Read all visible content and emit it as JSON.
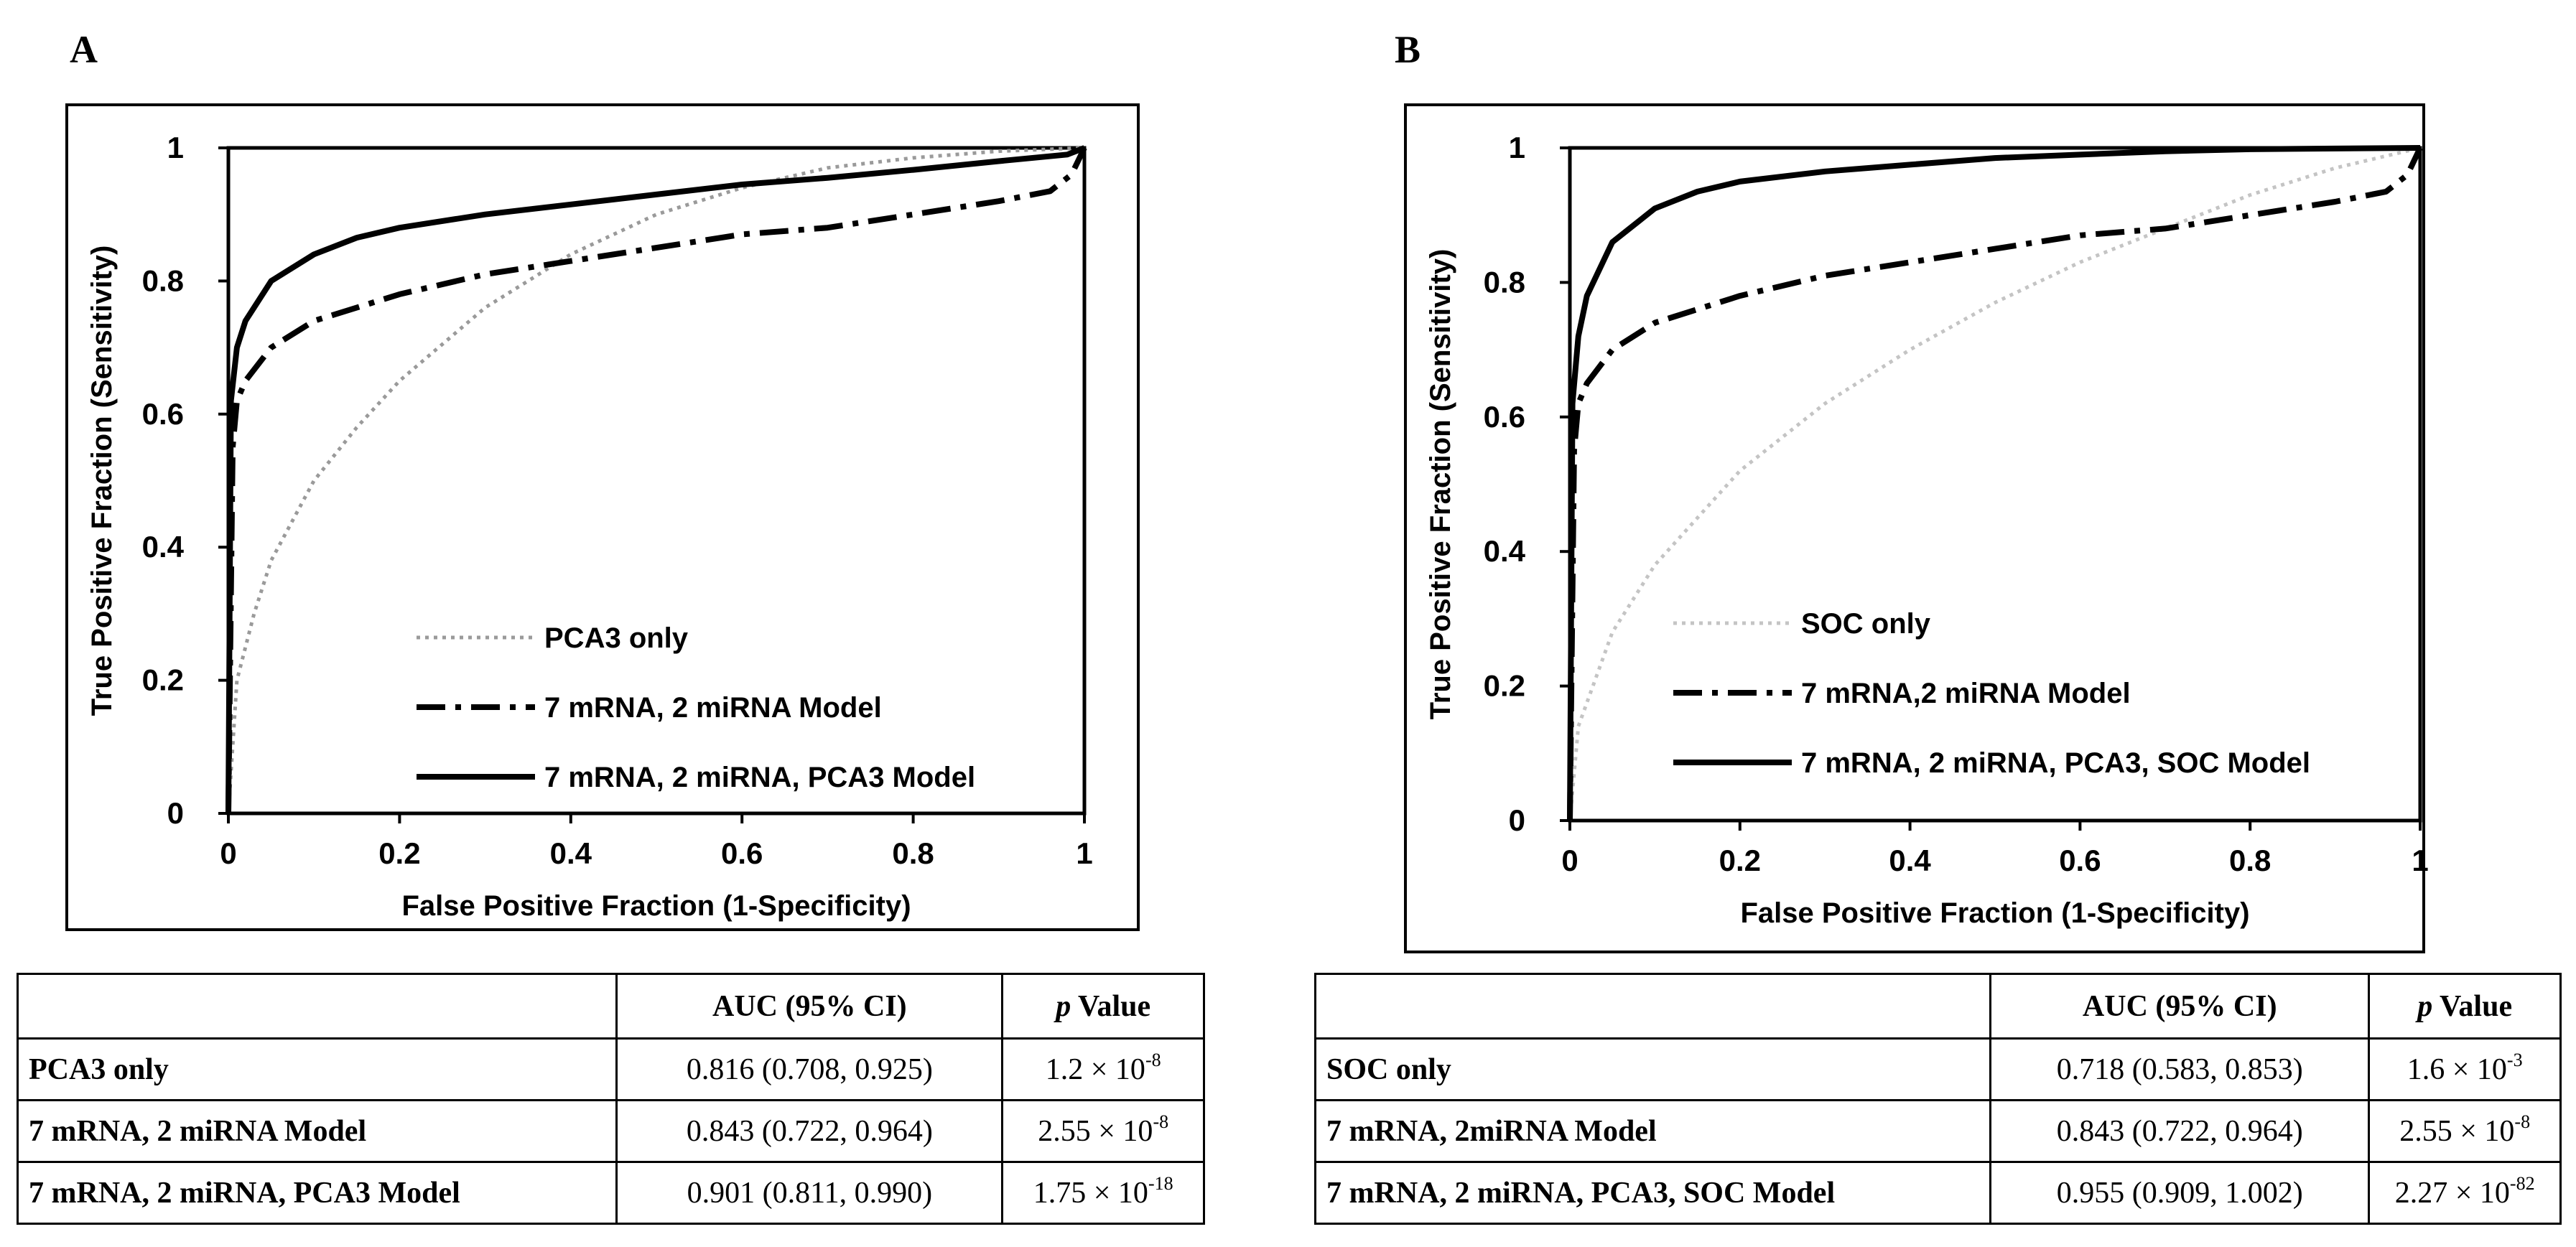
{
  "panels": [
    {
      "label": "A",
      "chart_data": {
        "type": "line",
        "title": "",
        "xlabel": "False Positive Fraction (1-Specificity)",
        "ylabel": "True Positive Fraction (Sensitivity)",
        "xlim": [
          0,
          1
        ],
        "ylim": [
          0,
          1
        ],
        "xticks": [
          "0",
          "0.2",
          "0.4",
          "0.6",
          "0.8",
          "1"
        ],
        "yticks": [
          "0",
          "0.2",
          "0.4",
          "0.6",
          "0.8",
          "1"
        ],
        "legend_position": "lower-middle",
        "series": [
          {
            "name": "PCA3 only",
            "style": "dotted",
            "color": "#9a9a9a",
            "x": [
              0,
              0.01,
              0.03,
              0.05,
              0.1,
              0.15,
              0.2,
              0.3,
              0.4,
              0.5,
              0.6,
              0.7,
              0.8,
              0.9,
              1.0
            ],
            "y": [
              0,
              0.2,
              0.3,
              0.38,
              0.5,
              0.58,
              0.65,
              0.76,
              0.84,
              0.9,
              0.94,
              0.97,
              0.985,
              0.995,
              1.0
            ]
          },
          {
            "name": "7 mRNA, 2 miRNA Model",
            "style": "dashdot",
            "color": "#000000",
            "x": [
              0,
              0.005,
              0.01,
              0.02,
              0.05,
              0.1,
              0.2,
              0.3,
              0.4,
              0.5,
              0.6,
              0.7,
              0.8,
              0.9,
              0.96,
              0.985,
              1.0
            ],
            "y": [
              0,
              0.55,
              0.62,
              0.65,
              0.7,
              0.74,
              0.78,
              0.81,
              0.83,
              0.85,
              0.87,
              0.88,
              0.9,
              0.92,
              0.935,
              0.96,
              1.0
            ]
          },
          {
            "name": "7 mRNA, 2 miRNA, PCA3 Model",
            "style": "solid",
            "color": "#000000",
            "x": [
              0,
              0.003,
              0.01,
              0.02,
              0.05,
              0.1,
              0.15,
              0.2,
              0.3,
              0.4,
              0.5,
              0.6,
              0.7,
              0.8,
              0.9,
              0.98,
              1.0
            ],
            "y": [
              0,
              0.62,
              0.7,
              0.74,
              0.8,
              0.84,
              0.865,
              0.88,
              0.9,
              0.915,
              0.93,
              0.945,
              0.955,
              0.967,
              0.98,
              0.99,
              1.0
            ]
          }
        ]
      },
      "table": {
        "headers": {
          "auc": "AUC (95% CI)",
          "p_italic": "p",
          "p_rest": "Value"
        },
        "rows": [
          {
            "name": "PCA3 only",
            "auc": "0.816 (0.708, 0.925)",
            "p_base": "1.2 × 10",
            "p_exp": "-8"
          },
          {
            "name": "7 mRNA, 2 miRNA Model",
            "auc": "0.843 (0.722, 0.964)",
            "p_base": "2.55 × 10",
            "p_exp": "-8"
          },
          {
            "name": "7 mRNA, 2 miRNA, PCA3 Model",
            "auc": "0.901 (0.811, 0.990)",
            "p_base": "1.75 × 10",
            "p_exp": "-18"
          }
        ]
      }
    },
    {
      "label": "B",
      "chart_data": {
        "type": "line",
        "title": "",
        "xlabel": "False Positive Fraction (1-Specificity)",
        "ylabel": "True Positive Fraction (Sensitivity)",
        "xlim": [
          0,
          1
        ],
        "ylim": [
          0,
          1
        ],
        "xticks": [
          "0",
          "0.2",
          "0.4",
          "0.6",
          "0.8",
          "1"
        ],
        "yticks": [
          "0",
          "0.2",
          "0.4",
          "0.6",
          "0.8",
          "1"
        ],
        "legend_position": "lower-middle",
        "series": [
          {
            "name": "SOC only",
            "style": "dotted",
            "color": "#c4c4c4",
            "x": [
              0,
              0.01,
              0.05,
              0.1,
              0.2,
              0.3,
              0.4,
              0.5,
              0.6,
              0.7,
              0.8,
              0.9,
              1.0
            ],
            "y": [
              0,
              0.14,
              0.28,
              0.38,
              0.52,
              0.62,
              0.7,
              0.77,
              0.83,
              0.88,
              0.93,
              0.97,
              1.0
            ]
          },
          {
            "name": "7 mRNA,2 miRNA Model",
            "style": "dashdot",
            "color": "#000000",
            "x": [
              0,
              0.005,
              0.01,
              0.02,
              0.05,
              0.1,
              0.2,
              0.3,
              0.4,
              0.5,
              0.6,
              0.7,
              0.8,
              0.9,
              0.96,
              0.985,
              1.0
            ],
            "y": [
              0,
              0.55,
              0.62,
              0.65,
              0.7,
              0.74,
              0.78,
              0.81,
              0.83,
              0.85,
              0.87,
              0.88,
              0.9,
              0.92,
              0.935,
              0.96,
              1.0
            ]
          },
          {
            "name": "7 mRNA, 2 miRNA, PCA3, SOC Model",
            "style": "solid",
            "color": "#000000",
            "x": [
              0,
              0.003,
              0.01,
              0.02,
              0.05,
              0.1,
              0.15,
              0.2,
              0.3,
              0.4,
              0.5,
              0.6,
              0.7,
              0.8,
              0.9,
              1.0
            ],
            "y": [
              0,
              0.62,
              0.72,
              0.78,
              0.86,
              0.91,
              0.935,
              0.95,
              0.965,
              0.975,
              0.985,
              0.99,
              0.995,
              0.998,
              0.999,
              1.0
            ]
          }
        ]
      },
      "table": {
        "headers": {
          "auc": "AUC (95% CI)",
          "p_italic": "p",
          "p_rest": "Value"
        },
        "rows": [
          {
            "name": "SOC only",
            "auc": "0.718 (0.583, 0.853)",
            "p_base": "1.6 × 10",
            "p_exp": "-3"
          },
          {
            "name": "7 mRNA, 2miRNA Model",
            "auc": "0.843 (0.722, 0.964)",
            "p_base": "2.55 × 10",
            "p_exp": "-8"
          },
          {
            "name": "7 mRNA, 2 miRNA, PCA3, SOC Model",
            "auc": "0.955 (0.909, 1.002)",
            "p_base": "2.27 × 10",
            "p_exp": "-82"
          }
        ]
      }
    }
  ]
}
